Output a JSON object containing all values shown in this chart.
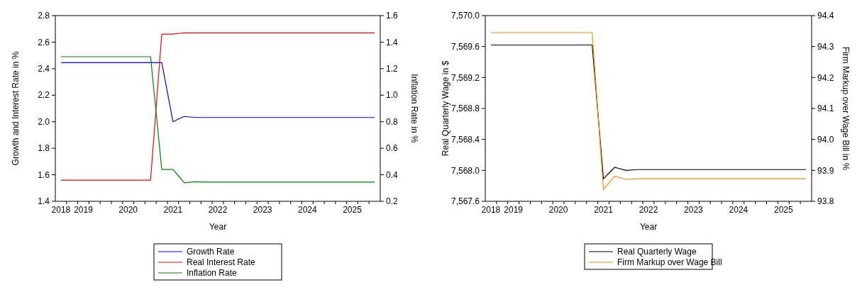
{
  "chart_data": [
    {
      "type": "line",
      "xlabel": "Year",
      "ylabel": "Growth and Interest Rate in %",
      "y2label": "Inflation Rate in %",
      "categories": [
        "2018",
        null,
        "2019",
        null,
        null,
        null,
        "2020",
        null,
        null,
        null,
        "2021",
        null,
        null,
        null,
        "2022",
        null,
        null,
        null,
        "2023",
        null,
        null,
        null,
        "2024",
        null,
        null,
        null,
        "2025",
        null,
        null
      ],
      "ylim": [
        1.4,
        2.8
      ],
      "yticks": [
        {
          "value": 1.4,
          "label": "1.4"
        },
        {
          "value": 1.6,
          "label": "1.6"
        },
        {
          "value": 1.8,
          "label": "1.8"
        },
        {
          "value": 2.0,
          "label": "2.0"
        },
        {
          "value": 2.2,
          "label": "2.2"
        },
        {
          "value": 2.4,
          "label": "2.4"
        },
        {
          "value": 2.6,
          "label": "2.6"
        },
        {
          "value": 2.8,
          "label": "2.8"
        }
      ],
      "y2lim": [
        0.2,
        1.6
      ],
      "y2ticks": [
        {
          "value": 0.2,
          "label": "0.2"
        },
        {
          "value": 0.4,
          "label": "0.4"
        },
        {
          "value": 0.6,
          "label": "0.6"
        },
        {
          "value": 0.8,
          "label": "0.8"
        },
        {
          "value": 1.0,
          "label": "1.0"
        },
        {
          "value": 1.2,
          "label": "1.2"
        },
        {
          "value": 1.4,
          "label": "1.4"
        },
        {
          "value": 1.6,
          "label": "1.6"
        }
      ],
      "legend": "bottom",
      "series": [
        {
          "name": "Growth Rate",
          "color": "#0000ff",
          "values": [
            2.445,
            2.445,
            2.445,
            2.445,
            2.445,
            2.445,
            2.445,
            2.445,
            2.445,
            2.445,
            2.0,
            2.04,
            2.032,
            2.032,
            2.032,
            2.032,
            2.032,
            2.032,
            2.032,
            2.032,
            2.032,
            2.032,
            2.032,
            2.032,
            2.032,
            2.032,
            2.032,
            2.032,
            2.032
          ]
        },
        {
          "name": "Real Interest Rate",
          "color": "#ff0000",
          "values": [
            1.56,
            1.56,
            1.56,
            1.56,
            1.56,
            1.56,
            1.56,
            1.56,
            1.56,
            2.66,
            2.66,
            2.67,
            2.67,
            2.67,
            2.67,
            2.67,
            2.67,
            2.67,
            2.67,
            2.67,
            2.67,
            2.67,
            2.67,
            2.67,
            2.67,
            2.67,
            2.67,
            2.67,
            2.67
          ]
        },
        {
          "name": "Inflation Rate",
          "color": "#008000",
          "axis": "y2",
          "values": [
            1.29,
            1.29,
            1.29,
            1.29,
            1.29,
            1.29,
            1.29,
            1.29,
            1.29,
            0.44,
            0.44,
            0.34,
            0.348,
            0.345,
            0.345,
            0.345,
            0.345,
            0.345,
            0.345,
            0.345,
            0.345,
            0.345,
            0.345,
            0.345,
            0.345,
            0.345,
            0.345,
            0.345,
            0.345
          ]
        }
      ]
    },
    {
      "type": "line",
      "xlabel": "Year",
      "ylabel": "Real Quarterly Wage in $",
      "y2label": "Firm Markup over Wage Bill in %",
      "categories": [
        "2018",
        null,
        "2019",
        null,
        null,
        null,
        "2020",
        null,
        null,
        null,
        "2021",
        null,
        null,
        null,
        "2022",
        null,
        null,
        null,
        "2023",
        null,
        null,
        null,
        "2024",
        null,
        null,
        null,
        "2025",
        null,
        null
      ],
      "ylim": [
        7567.6,
        7570.0
      ],
      "yticks": [
        {
          "value": 7567.6,
          "label": "7,567.6"
        },
        {
          "value": 7568.0,
          "label": "7,568.0"
        },
        {
          "value": 7568.4,
          "label": "7,568.4"
        },
        {
          "value": 7568.8,
          "label": "7,568.8"
        },
        {
          "value": 7569.2,
          "label": "7,569.2"
        },
        {
          "value": 7569.6,
          "label": "7,569.6"
        },
        {
          "value": 7570.0,
          "label": "7,570.0"
        }
      ],
      "y2lim": [
        93.8,
        94.4
      ],
      "y2ticks": [
        {
          "value": 93.8,
          "label": "93.8"
        },
        {
          "value": 93.9,
          "label": "93.9"
        },
        {
          "value": 94.0,
          "label": "94.0"
        },
        {
          "value": 94.1,
          "label": "94.1"
        },
        {
          "value": 94.2,
          "label": "94.2"
        },
        {
          "value": 94.3,
          "label": "94.3"
        },
        {
          "value": 94.4,
          "label": "94.4"
        }
      ],
      "legend": "bottom",
      "series": [
        {
          "name": "Real Quarterly Wage",
          "color": "#000000",
          "values": [
            7569.62,
            7569.62,
            7569.62,
            7569.62,
            7569.62,
            7569.62,
            7569.62,
            7569.62,
            7569.62,
            7569.62,
            7567.89,
            7568.04,
            7568.0,
            7568.01,
            7568.01,
            7568.01,
            7568.01,
            7568.01,
            7568.01,
            7568.01,
            7568.01,
            7568.01,
            7568.01,
            7568.01,
            7568.01,
            7568.01,
            7568.01,
            7568.01,
            7568.01
          ]
        },
        {
          "name": "Firm Markup over Wage Bill",
          "color": "#ff8c00",
          "axis": "y2",
          "values": [
            94.345,
            94.345,
            94.345,
            94.345,
            94.345,
            94.345,
            94.345,
            94.345,
            94.345,
            94.345,
            93.838,
            93.881,
            93.871,
            93.873,
            93.873,
            93.873,
            93.873,
            93.873,
            93.873,
            93.873,
            93.873,
            93.873,
            93.873,
            93.873,
            93.873,
            93.873,
            93.873,
            93.873,
            93.873
          ]
        }
      ]
    }
  ]
}
